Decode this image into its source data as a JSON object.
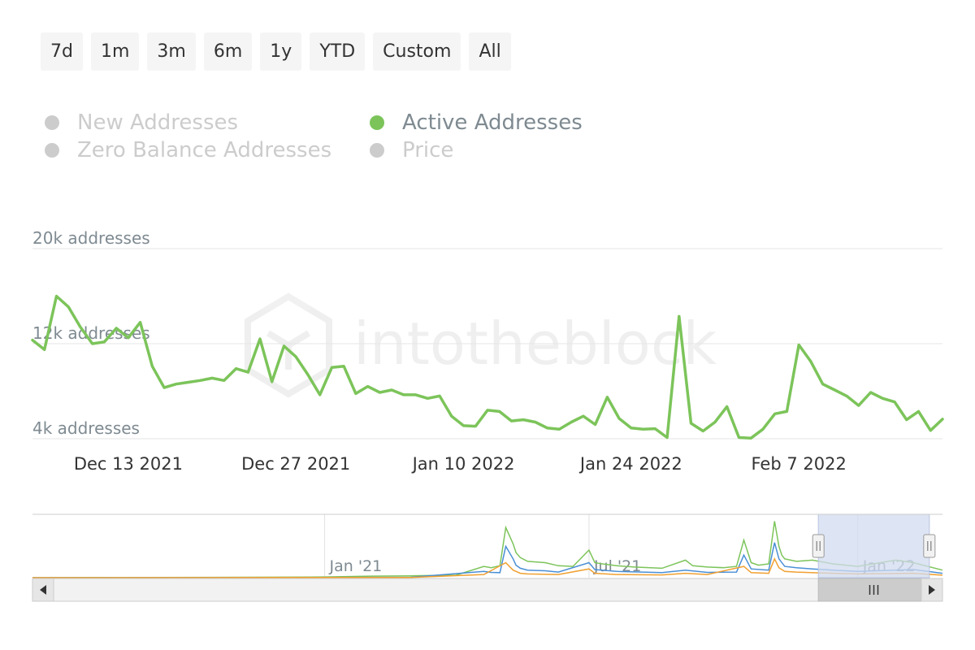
{
  "range_selector": {
    "buttons": [
      {
        "label": "7d"
      },
      {
        "label": "1m"
      },
      {
        "label": "3m"
      },
      {
        "label": "6m"
      },
      {
        "label": "1y"
      },
      {
        "label": "YTD"
      },
      {
        "label": "Custom"
      },
      {
        "label": "All"
      }
    ]
  },
  "legend": {
    "items": [
      {
        "label": "New Addresses",
        "active": false
      },
      {
        "label": "Zero Balance Addresses",
        "active": false
      },
      {
        "label": "Active Addresses",
        "active": true
      },
      {
        "label": "Price",
        "active": false
      }
    ]
  },
  "watermark": "intotheblock",
  "colors": {
    "active_addresses": "#7cc45a",
    "new_addresses": "#4a8fd6",
    "zero_balance": "#f0a030",
    "inactive": "#cccccc",
    "grid": "#e6e6e6",
    "axis_text": "#7e8a91",
    "date_text": "#333333",
    "navigator_mask": "#d2dbef"
  },
  "chart_data": {
    "type": "line",
    "y_tick_labels": [
      "4k addresses",
      "12k addresses",
      "20k addresses"
    ],
    "y_ticks": [
      4000,
      12000,
      20000
    ],
    "ylim": [
      4000,
      20000
    ],
    "x_tick_labels": [
      "Dec 13 2021",
      "Dec 27 2021",
      "Jan 10 2022",
      "Jan 24 2022",
      "Feb 7 2022"
    ],
    "x_tick_dates": [
      "2021-12-13",
      "2021-12-27",
      "2022-01-10",
      "2022-01-24",
      "2022-02-07"
    ],
    "xlim": [
      "2021-12-05",
      "2022-02-19"
    ],
    "grid": true,
    "series": [
      {
        "name": "Active Addresses",
        "x": [
          "2021-12-05",
          "2021-12-06",
          "2021-12-07",
          "2021-12-08",
          "2021-12-09",
          "2021-12-10",
          "2021-12-11",
          "2021-12-12",
          "2021-12-13",
          "2021-12-14",
          "2021-12-15",
          "2021-12-16",
          "2021-12-17",
          "2021-12-18",
          "2021-12-19",
          "2021-12-20",
          "2021-12-21",
          "2021-12-22",
          "2021-12-23",
          "2021-12-24",
          "2021-12-25",
          "2021-12-26",
          "2021-12-27",
          "2021-12-28",
          "2021-12-29",
          "2021-12-30",
          "2021-12-31",
          "2022-01-01",
          "2022-01-02",
          "2022-01-03",
          "2022-01-04",
          "2022-01-05",
          "2022-01-06",
          "2022-01-07",
          "2022-01-08",
          "2022-01-09",
          "2022-01-10",
          "2022-01-11",
          "2022-01-12",
          "2022-01-13",
          "2022-01-14",
          "2022-01-15",
          "2022-01-16",
          "2022-01-17",
          "2022-01-18",
          "2022-01-19",
          "2022-01-20",
          "2022-01-21",
          "2022-01-22",
          "2022-01-23",
          "2022-01-24",
          "2022-01-25",
          "2022-01-26",
          "2022-01-27",
          "2022-01-28",
          "2022-01-29",
          "2022-01-30",
          "2022-01-31",
          "2022-02-01",
          "2022-02-02",
          "2022-02-03",
          "2022-02-04",
          "2022-02-05",
          "2022-02-06",
          "2022-02-07",
          "2022-02-08",
          "2022-02-09",
          "2022-02-10",
          "2022-02-11",
          "2022-02-12",
          "2022-02-13",
          "2022-02-14",
          "2022-02-15",
          "2022-02-16",
          "2022-02-17",
          "2022-02-18",
          "2022-02-19"
        ],
        "values": [
          12300,
          11500,
          16000,
          15100,
          13400,
          12000,
          12150,
          13300,
          12500,
          13800,
          10100,
          8300,
          8600,
          8750,
          8900,
          9100,
          8900,
          9900,
          9600,
          12400,
          8800,
          11800,
          10900,
          9400,
          7700,
          10000,
          10100,
          7800,
          8400,
          7900,
          8100,
          7700,
          7700,
          7400,
          7600,
          5900,
          5100,
          5050,
          6400,
          6300,
          5500,
          5600,
          5400,
          4900,
          4800,
          5400,
          5900,
          5200,
          7500,
          5700,
          4900,
          4800,
          4850,
          4100,
          14300,
          5300,
          4650,
          5400,
          6700,
          4100,
          4050,
          4800,
          6100,
          6300,
          11900,
          10500,
          8600,
          8100,
          7600,
          6800,
          7900,
          7400,
          7100,
          5600,
          6300,
          4700,
          5650
        ]
      }
    ]
  },
  "navigator": {
    "x_tick_labels": [
      "Jan '21",
      "Jul '21",
      "Jan '22"
    ],
    "x_tick_dates": [
      "2021-01-01",
      "2021-07-01",
      "2022-01-01"
    ],
    "xlim": [
      "2020-06-15",
      "2022-02-28"
    ],
    "selection": [
      "2021-12-05",
      "2022-02-19"
    ],
    "series": [
      {
        "name": "Active Addresses",
        "x": [
          "2020-06-15",
          "2020-09-01",
          "2020-12-01",
          "2021-01-01",
          "2021-02-01",
          "2021-03-01",
          "2021-04-01",
          "2021-04-20",
          "2021-04-25",
          "2021-05-01",
          "2021-05-05",
          "2021-05-10",
          "2021-05-12",
          "2021-05-15",
          "2021-05-20",
          "2021-06-01",
          "2021-06-10",
          "2021-06-20",
          "2021-07-01",
          "2021-07-05",
          "2021-07-10",
          "2021-07-20",
          "2021-08-01",
          "2021-08-20",
          "2021-09-05",
          "2021-09-10",
          "2021-09-20",
          "2021-10-01",
          "2021-10-10",
          "2021-10-15",
          "2021-10-20",
          "2021-10-25",
          "2021-11-01",
          "2021-11-05",
          "2021-11-08",
          "2021-11-10",
          "2021-11-12",
          "2021-11-20",
          "2021-12-01",
          "2021-12-15",
          "2022-01-01",
          "2022-01-27",
          "2022-02-08",
          "2022-02-28"
        ],
        "values": [
          0,
          200,
          400,
          600,
          1200,
          1500,
          2000,
          9000,
          8000,
          9500,
          40000,
          27000,
          20000,
          16000,
          13000,
          12000,
          9500,
          9000,
          22000,
          12000,
          11000,
          9500,
          8500,
          7500,
          14000,
          9500,
          8500,
          8000,
          9000,
          30000,
          12000,
          10000,
          11000,
          45000,
          25000,
          18000,
          15000,
          13000,
          14000,
          11000,
          9000,
          14000,
          12000,
          6000
        ]
      },
      {
        "name": "New Addresses",
        "x": [
          "2020-06-15",
          "2020-12-01",
          "2021-03-01",
          "2021-04-20",
          "2021-04-25",
          "2021-05-01",
          "2021-05-05",
          "2021-05-10",
          "2021-05-12",
          "2021-05-15",
          "2021-05-20",
          "2021-06-01",
          "2021-06-10",
          "2021-07-01",
          "2021-07-05",
          "2021-07-20",
          "2021-08-20",
          "2021-09-05",
          "2021-09-20",
          "2021-10-10",
          "2021-10-15",
          "2021-10-20",
          "2021-11-01",
          "2021-11-05",
          "2021-11-08",
          "2021-11-12",
          "2021-11-20",
          "2021-12-01",
          "2021-12-15",
          "2022-01-01",
          "2022-02-08",
          "2022-02-28"
        ],
        "values": [
          0,
          100,
          300,
          5000,
          4200,
          4000,
          25000,
          15000,
          10000,
          7500,
          6000,
          5500,
          4500,
          12000,
          6500,
          5000,
          4000,
          6000,
          4200,
          4500,
          18000,
          7000,
          6000,
          28000,
          15000,
          9000,
          8000,
          7000,
          6000,
          5000,
          6500,
          3500
        ]
      },
      {
        "name": "Zero Balance Addresses",
        "x": [
          "2020-06-15",
          "2020-12-01",
          "2021-03-01",
          "2021-04-20",
          "2021-05-05",
          "2021-05-10",
          "2021-05-15",
          "2021-05-20",
          "2021-06-10",
          "2021-07-01",
          "2021-07-05",
          "2021-07-20",
          "2021-08-20",
          "2021-09-05",
          "2021-09-20",
          "2021-10-15",
          "2021-10-20",
          "2021-11-01",
          "2021-11-05",
          "2021-11-08",
          "2021-11-12",
          "2021-11-20",
          "2021-12-15",
          "2022-01-01",
          "2022-02-08",
          "2022-02-28"
        ],
        "values": [
          0,
          100,
          200,
          2500,
          12000,
          6000,
          3500,
          3000,
          2500,
          7000,
          3500,
          2500,
          2200,
          3500,
          2500,
          9000,
          4000,
          3500,
          15000,
          8000,
          5000,
          4500,
          3500,
          3000,
          3500,
          2000
        ]
      }
    ]
  }
}
